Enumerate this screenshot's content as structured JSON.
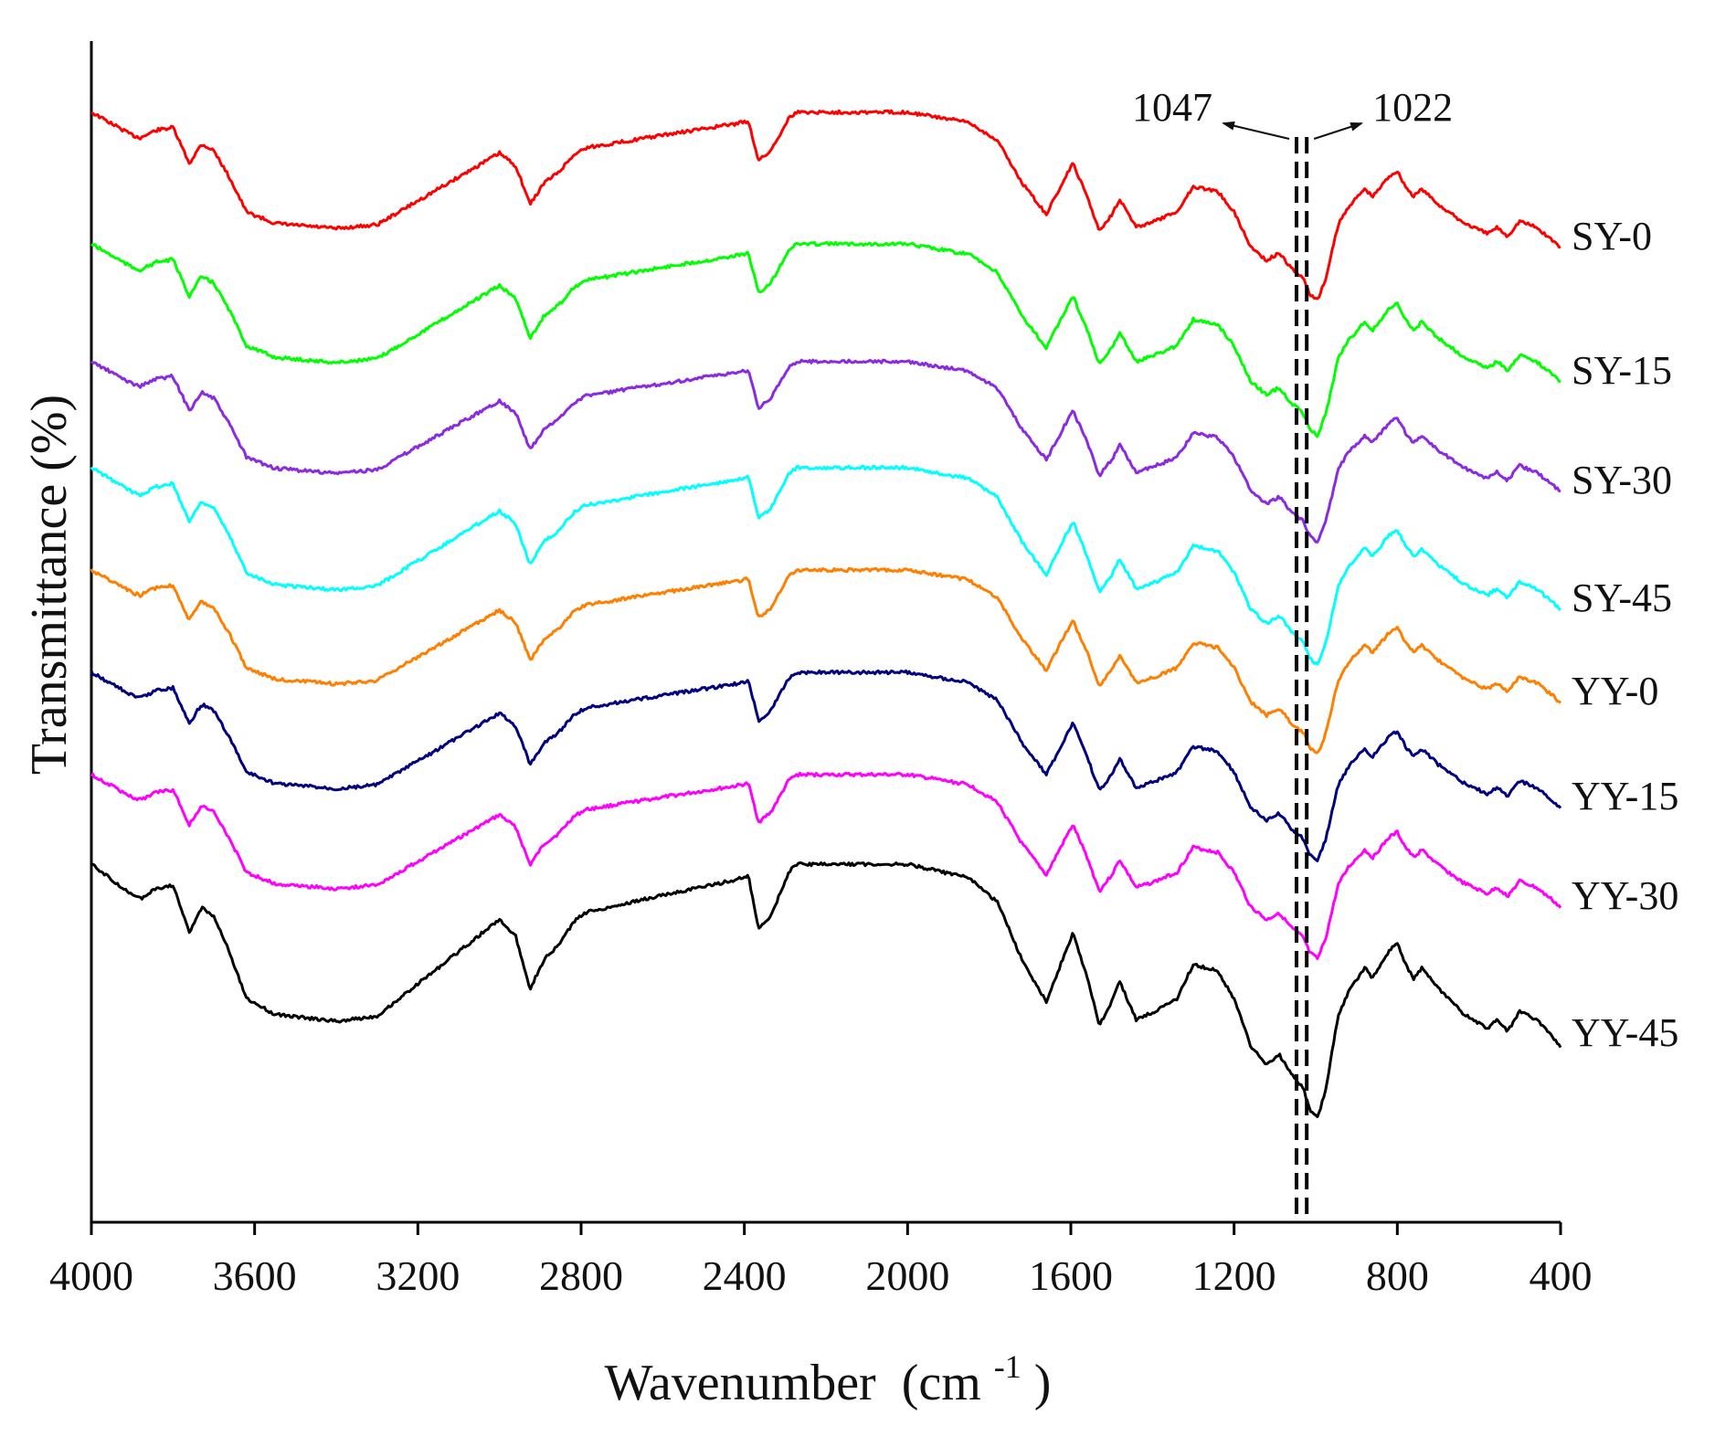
{
  "chart_data": {
    "type": "line",
    "title": "",
    "xlabel": "Wavenumber",
    "xlabel_unit_prefix": "(cm",
    "xlabel_unit_exp": "-1",
    "xlabel_unit_suffix": ")",
    "ylabel": "Transmittance (%)",
    "xlim": [
      4000,
      400
    ],
    "x_reversed": true,
    "x_ticks": [
      4000,
      3600,
      3200,
      2800,
      2400,
      2000,
      1600,
      1200,
      800,
      400
    ],
    "grid": false,
    "legend": "labels-right",
    "annotations": [
      {
        "label": "1047",
        "x": 1047,
        "style": "dashed-line",
        "arrow": "left"
      },
      {
        "label": "1022",
        "x": 1022,
        "style": "dashed-line",
        "arrow": "right"
      }
    ],
    "features": [
      [
        4000,
        0.0
      ],
      [
        3900,
        0.18
      ],
      [
        3880,
        0.2
      ],
      [
        3840,
        0.14
      ],
      [
        3800,
        0.12
      ],
      [
        3760,
        0.4
      ],
      [
        3730,
        0.25
      ],
      [
        3700,
        0.3
      ],
      [
        3660,
        0.52
      ],
      [
        3620,
        0.78
      ],
      [
        3550,
        0.87
      ],
      [
        3400,
        0.91
      ],
      [
        3300,
        0.88
      ],
      [
        3150,
        0.6
      ],
      [
        3000,
        0.32
      ],
      [
        2960,
        0.42
      ],
      [
        2925,
        0.72
      ],
      [
        2890,
        0.55
      ],
      [
        2855,
        0.47
      ],
      [
        2820,
        0.34
      ],
      [
        2790,
        0.28
      ],
      [
        2600,
        0.18
      ],
      [
        2420,
        0.09
      ],
      [
        2390,
        0.07
      ],
      [
        2365,
        0.38
      ],
      [
        2335,
        0.3
      ],
      [
        2290,
        0.04
      ],
      [
        2270,
        0.0
      ],
      [
        2000,
        0.0
      ],
      [
        1850,
        0.08
      ],
      [
        1780,
        0.22
      ],
      [
        1720,
        0.55
      ],
      [
        1660,
        0.8
      ],
      [
        1620,
        0.55
      ],
      [
        1595,
        0.4
      ],
      [
        1560,
        0.66
      ],
      [
        1530,
        0.93
      ],
      [
        1500,
        0.8
      ],
      [
        1480,
        0.68
      ],
      [
        1440,
        0.9
      ],
      [
        1400,
        0.86
      ],
      [
        1340,
        0.78
      ],
      [
        1300,
        0.58
      ],
      [
        1240,
        0.62
      ],
      [
        1200,
        0.78
      ],
      [
        1160,
        1.05
      ],
      [
        1120,
        1.16
      ],
      [
        1090,
        1.1
      ],
      [
        1060,
        1.22
      ],
      [
        1030,
        1.3
      ],
      [
        1015,
        1.42
      ],
      [
        995,
        1.47
      ],
      [
        975,
        1.3
      ],
      [
        945,
        0.88
      ],
      [
        920,
        0.74
      ],
      [
        880,
        0.6
      ],
      [
        860,
        0.66
      ],
      [
        820,
        0.5
      ],
      [
        800,
        0.46
      ],
      [
        780,
        0.58
      ],
      [
        760,
        0.66
      ],
      [
        740,
        0.6
      ],
      [
        700,
        0.72
      ],
      [
        640,
        0.86
      ],
      [
        580,
        0.95
      ],
      [
        555,
        0.9
      ],
      [
        530,
        0.97
      ],
      [
        500,
        0.85
      ],
      [
        460,
        0.9
      ],
      [
        420,
        1.0
      ],
      [
        400,
        1.06
      ]
    ],
    "series": [
      {
        "name": "SY-0",
        "color": "#ff0000",
        "offset": 0.02,
        "scale": 1.0
      },
      {
        "name": "SY-15",
        "color": "#00ff00",
        "offset": 1.05,
        "scale": 1.02
      },
      {
        "name": "SY-30",
        "color": "#8a2be2",
        "offset": 1.97,
        "scale": 0.96
      },
      {
        "name": "SY-45",
        "color": "#00ffff",
        "offset": 2.8,
        "scale": 1.05
      },
      {
        "name": "YY-0",
        "color": "#ff7f00",
        "offset": 3.6,
        "scale": 0.98
      },
      {
        "name": "YY-15",
        "color": "#000080",
        "offset": 4.4,
        "scale": 1.0
      },
      {
        "name": "YY-30",
        "color": "#ff00ff",
        "offset": 5.2,
        "scale": 0.98
      },
      {
        "name": "YY-45",
        "color": "#000000",
        "offset": 5.9,
        "scale": 1.35
      }
    ]
  }
}
